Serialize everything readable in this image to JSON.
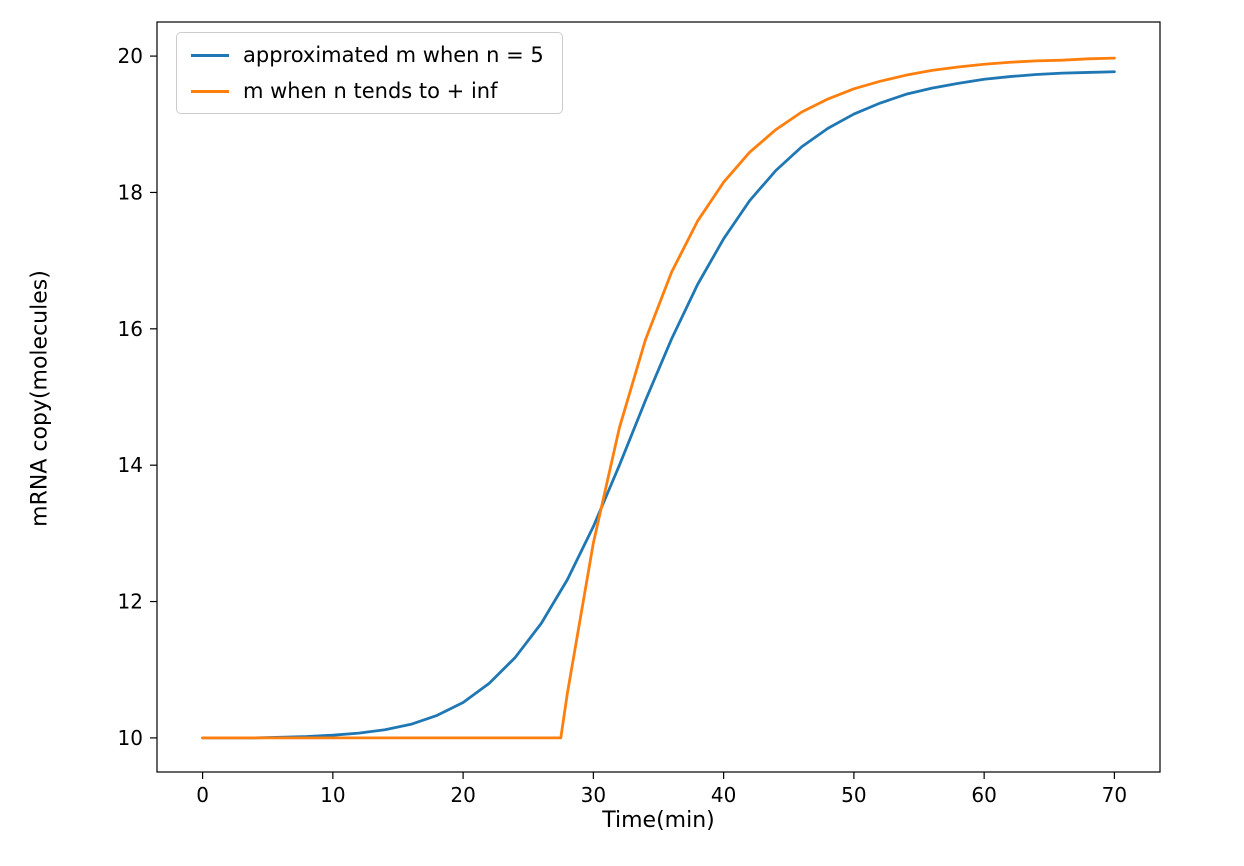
{
  "figure": {
    "background": "#ffffff"
  },
  "chart_data": {
    "type": "line",
    "title": "",
    "xlabel": "Time(min)",
    "ylabel": "mRNA copy(molecules)",
    "xlim": [
      -3.5,
      73.5
    ],
    "ylim": [
      9.5,
      20.5
    ],
    "xticks": [
      0,
      10,
      20,
      30,
      40,
      50,
      60,
      70
    ],
    "yticks": [
      10,
      12,
      14,
      16,
      18,
      20
    ],
    "grid": false,
    "legend_position": "upper left",
    "x": [
      0,
      2,
      4,
      6,
      8,
      10,
      12,
      14,
      16,
      18,
      20,
      22,
      24,
      26,
      27.5,
      28,
      30,
      32,
      34,
      36,
      38,
      40,
      42,
      44,
      46,
      48,
      50,
      52,
      54,
      56,
      58,
      60,
      62,
      64,
      66,
      68,
      70
    ],
    "series": [
      {
        "name": "approximated m when n = 5",
        "color": "#1f77b4",
        "values": [
          10.0,
          10.0,
          10.0,
          10.01,
          10.02,
          10.04,
          10.07,
          10.12,
          10.2,
          10.33,
          10.52,
          10.8,
          11.18,
          11.68,
          12.16,
          12.32,
          13.1,
          14.0,
          14.95,
          15.85,
          16.65,
          17.32,
          17.88,
          18.32,
          18.67,
          18.94,
          19.15,
          19.31,
          19.44,
          19.53,
          19.6,
          19.66,
          19.7,
          19.73,
          19.75,
          19.76,
          19.77
        ]
      },
      {
        "name": "m when n tends to + inf",
        "color": "#ff7f0e",
        "values": [
          10.0,
          10.0,
          10.0,
          10.0,
          10.0,
          10.0,
          10.0,
          10.0,
          10.0,
          10.0,
          10.0,
          10.0,
          10.0,
          10.0,
          10.0,
          10.65,
          12.86,
          14.55,
          15.84,
          16.83,
          17.58,
          18.15,
          18.59,
          18.92,
          19.18,
          19.37,
          19.52,
          19.63,
          19.72,
          19.79,
          19.84,
          19.88,
          19.91,
          19.93,
          19.94,
          19.96,
          19.97
        ]
      }
    ],
    "line_width": 2.8,
    "axis_color": "#000000",
    "tick_font_size": 20
  }
}
